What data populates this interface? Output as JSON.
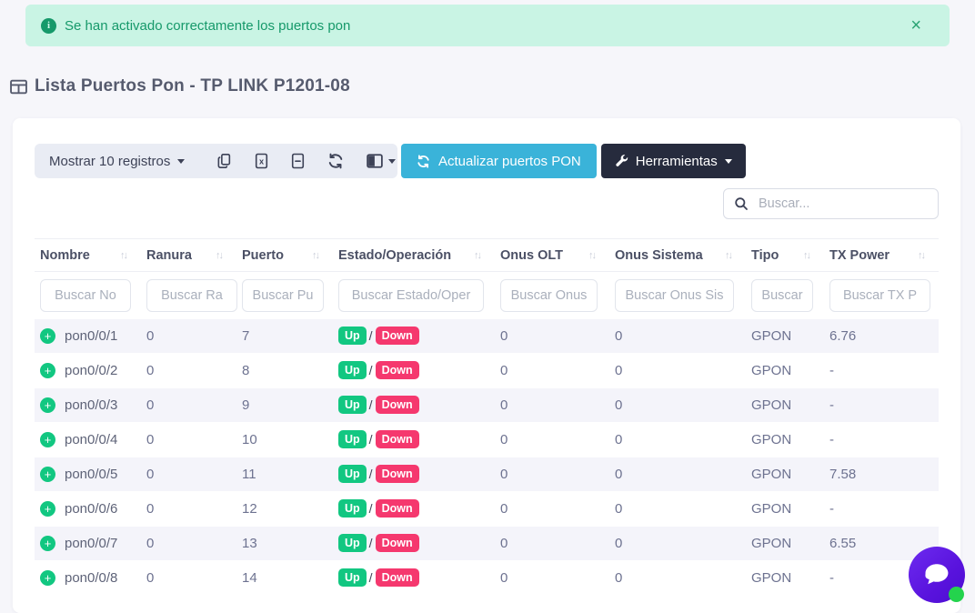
{
  "alert": {
    "message": "Se han activado correctamente los puertos pon",
    "close_label": "×"
  },
  "page": {
    "title": "Lista Puertos Pon - TP LINK P1201-08"
  },
  "toolbar": {
    "show_entries_label": "Mostrar 10 registros",
    "icon_buttons": [
      "copy-icon",
      "excel-export-icon",
      "file-export-icon",
      "reload-icon",
      "column-visibility-icon"
    ],
    "refresh_button_label": "Actualizar puertos PON",
    "tools_button_label": "Herramientas"
  },
  "search": {
    "placeholder": "Buscar..."
  },
  "table": {
    "columns": [
      {
        "label": "Nombre",
        "filter_placeholder": "Buscar No"
      },
      {
        "label": "Ranura",
        "filter_placeholder": "Buscar Ra"
      },
      {
        "label": "Puerto",
        "filter_placeholder": "Buscar Pu"
      },
      {
        "label": "Estado/Operación",
        "filter_placeholder": "Buscar Estado/Oper"
      },
      {
        "label": "Onus OLT",
        "filter_placeholder": "Buscar Onus"
      },
      {
        "label": "Onus Sistema",
        "filter_placeholder": "Buscar Onus Sis"
      },
      {
        "label": "Tipo",
        "filter_placeholder": "Buscar"
      },
      {
        "label": "TX Power",
        "filter_placeholder": "Buscar TX P"
      }
    ],
    "status_badges": {
      "up": "Up",
      "down": "Down",
      "separator": "/"
    },
    "rows": [
      {
        "nombre": "pon0/0/1",
        "ranura": "0",
        "puerto": "7",
        "onus_olt": "0",
        "onus_sistema": "0",
        "tipo": "GPON",
        "tx_power": "6.76"
      },
      {
        "nombre": "pon0/0/2",
        "ranura": "0",
        "puerto": "8",
        "onus_olt": "0",
        "onus_sistema": "0",
        "tipo": "GPON",
        "tx_power": "-"
      },
      {
        "nombre": "pon0/0/3",
        "ranura": "0",
        "puerto": "9",
        "onus_olt": "0",
        "onus_sistema": "0",
        "tipo": "GPON",
        "tx_power": "-"
      },
      {
        "nombre": "pon0/0/4",
        "ranura": "0",
        "puerto": "10",
        "onus_olt": "0",
        "onus_sistema": "0",
        "tipo": "GPON",
        "tx_power": "-"
      },
      {
        "nombre": "pon0/0/5",
        "ranura": "0",
        "puerto": "11",
        "onus_olt": "0",
        "onus_sistema": "0",
        "tipo": "GPON",
        "tx_power": "7.58"
      },
      {
        "nombre": "pon0/0/6",
        "ranura": "0",
        "puerto": "12",
        "onus_olt": "0",
        "onus_sistema": "0",
        "tipo": "GPON",
        "tx_power": "-"
      },
      {
        "nombre": "pon0/0/7",
        "ranura": "0",
        "puerto": "13",
        "onus_olt": "0",
        "onus_sistema": "0",
        "tipo": "GPON",
        "tx_power": "6.55"
      },
      {
        "nombre": "pon0/0/8",
        "ranura": "0",
        "puerto": "14",
        "onus_olt": "0",
        "onus_sistema": "0",
        "tipo": "GPON",
        "tx_power": "-"
      }
    ]
  },
  "colors": {
    "alert_background": "#c9f4e4",
    "alert_text": "#16996a",
    "primary_button": "#3ab3d9",
    "dark_button": "#262b3d",
    "success_badge": "#12c781",
    "danger_badge": "#f5386e",
    "chat_widget": "#5913dd",
    "online_dot": "#24d34d"
  }
}
